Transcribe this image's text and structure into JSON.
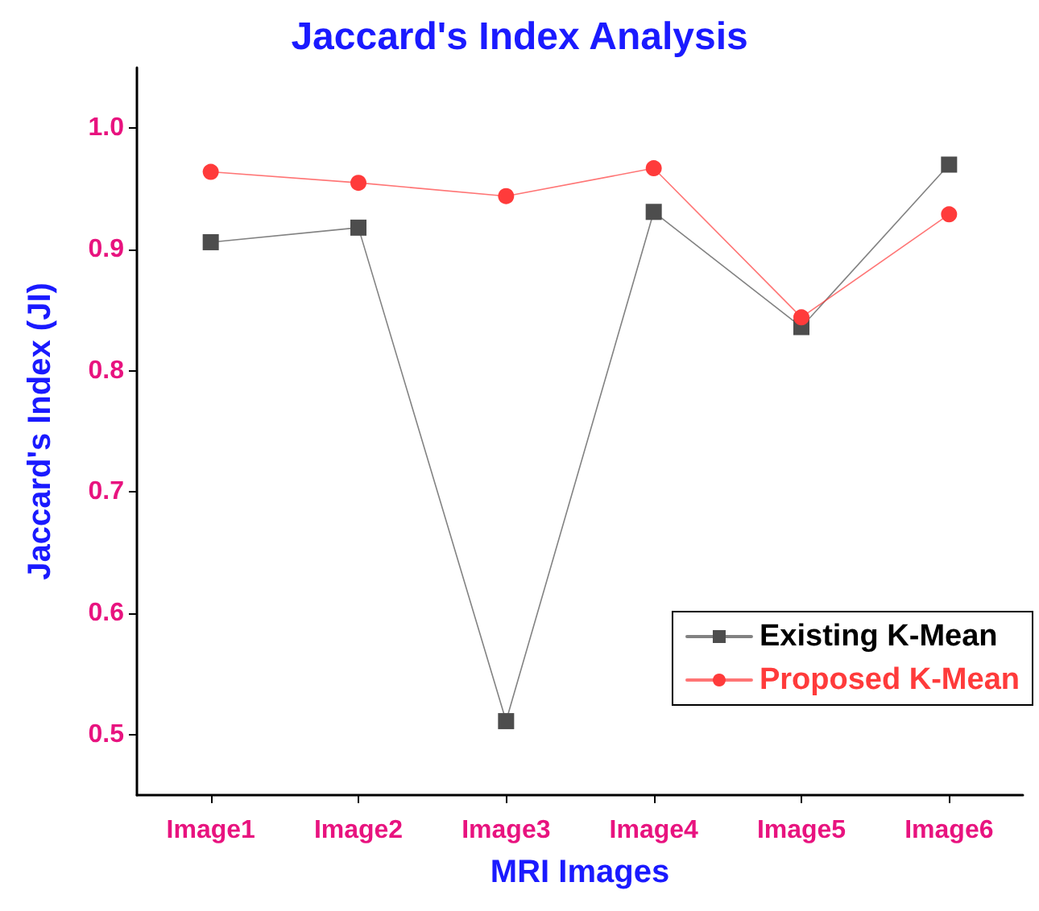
{
  "chart_data": {
    "type": "line",
    "title": "Jaccard's Index Analysis",
    "xlabel": "MRI Images",
    "ylabel": "Jaccard's Index (JI)",
    "categories": [
      "Image1",
      "Image2",
      "Image3",
      "Image4",
      "Image5",
      "Image6"
    ],
    "series": [
      {
        "name": "Existing K-Mean",
        "color": "#4d4d4d",
        "marker": "square",
        "values": [
          0.906,
          0.918,
          0.511,
          0.931,
          0.836,
          0.97
        ]
      },
      {
        "name": "Proposed K-Mean",
        "color": "#ff3b3b",
        "marker": "circle",
        "values": [
          0.964,
          0.955,
          0.944,
          0.967,
          0.844,
          0.929
        ]
      }
    ],
    "ylim": [
      0.45,
      1.05
    ],
    "yticks": [
      0.5,
      0.6,
      0.7,
      0.8,
      0.9,
      {
        "value": 1,
        "label": "1.0"
      }
    ],
    "grid": false,
    "legend": "bottom right",
    "line_style": "solid"
  }
}
